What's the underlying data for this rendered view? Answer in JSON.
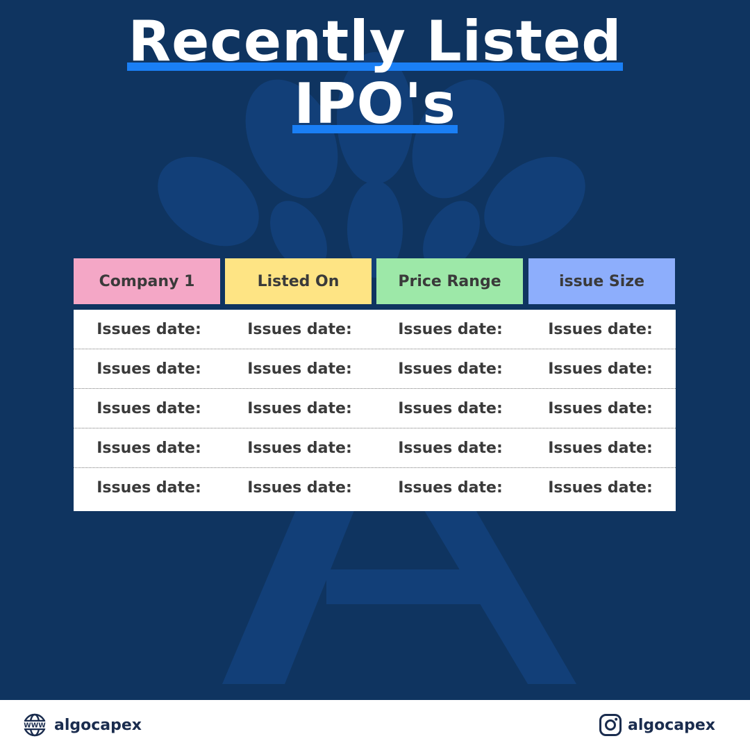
{
  "title": {
    "line1": "Recently Listed",
    "line2": "IPO's"
  },
  "table": {
    "headers": [
      "Company 1",
      "Listed On",
      "Price Range",
      "issue Size"
    ],
    "rows": [
      [
        "Issues date:",
        "Issues date:",
        "Issues date:",
        "Issues date:"
      ],
      [
        "Issues date:",
        "Issues date:",
        "Issues date:",
        "Issues date:"
      ],
      [
        "Issues date:",
        "Issues date:",
        "Issues date:",
        "Issues date:"
      ],
      [
        "Issues date:",
        "Issues date:",
        "Issues date:",
        "Issues date:"
      ],
      [
        "Issues date:",
        "Issues date:",
        "Issues date:",
        "Issues date:"
      ]
    ]
  },
  "footer": {
    "website": "algocapex",
    "instagram": "algocapex"
  },
  "icons": {
    "website": "www-globe-icon",
    "instagram": "instagram-icon",
    "background": "tree-logo-watermark"
  },
  "colors": {
    "background": "#0f3460",
    "title_underline": "#1a7ff5",
    "header_company": "#f4a7c6",
    "header_listed": "#fee484",
    "header_price": "#9de8a8",
    "header_issue": "#8daefc"
  }
}
